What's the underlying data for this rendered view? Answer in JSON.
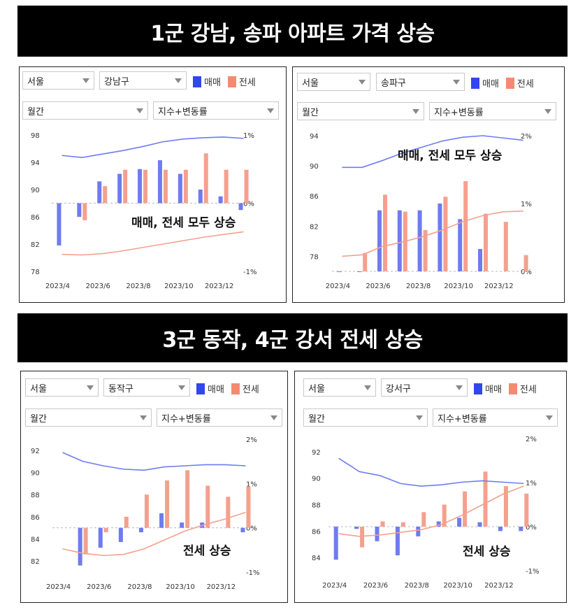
{
  "headline1": "1군 강남, 송파 아파트 가격 상승",
  "headline2": "3군 동작, 4군 강서 전세 상승",
  "colors": {
    "sale": "#6f7bf0",
    "jeonse": "#f5a08e",
    "sale_swatch": "#3246ee",
    "jeonse_swatch": "#f58a72"
  },
  "chart_data": [
    {
      "type": "bar",
      "controls": {
        "region": "서울",
        "district": "강남구",
        "period": "월간",
        "metric": "지수+변동률"
      },
      "legend": [
        "매매",
        "전세"
      ],
      "annotation": "매매, 전세 모두 상승",
      "x": [
        "2023/4",
        "2023/5",
        "2023/6",
        "2023/7",
        "2023/8",
        "2023/9",
        "2023/10",
        "2023/11",
        "2023/12",
        "2024/1"
      ],
      "x_tick_labels": [
        "2023/4",
        "2023/6",
        "2023/8",
        "2023/10",
        "2023/12"
      ],
      "left_axis": {
        "range": [
          78,
          98
        ],
        "ticks": [
          "98",
          "94",
          "90",
          "86",
          "82",
          "78"
        ]
      },
      "right_axis": {
        "range": [
          -1,
          1
        ],
        "ticks": [
          "1%",
          "0%",
          "-1%"
        ]
      },
      "series": [
        {
          "name": "매매",
          "kind": "bar",
          "axis": "right",
          "values": [
            -0.62,
            -0.2,
            0.32,
            0.43,
            0.5,
            0.63,
            0.43,
            0.2,
            0.1,
            -0.1
          ]
        },
        {
          "name": "전세",
          "kind": "bar",
          "axis": "right",
          "values": [
            null,
            -0.25,
            0.25,
            0.49,
            0.49,
            0.49,
            0.49,
            0.73,
            0.49,
            0.49
          ]
        },
        {
          "name": "매매 지수",
          "kind": "line",
          "axis": "left",
          "values": [
            95.0,
            94.7,
            95.2,
            95.7,
            96.3,
            97.0,
            97.4,
            97.6,
            97.7,
            97.5
          ]
        },
        {
          "name": "전세 지수",
          "kind": "line",
          "axis": "left",
          "values": [
            80.5,
            80.4,
            80.6,
            81.0,
            81.5,
            82.0,
            82.5,
            83.0,
            83.4,
            83.8
          ]
        }
      ]
    },
    {
      "type": "bar",
      "controls": {
        "region": "서울",
        "district": "송파구",
        "period": "월간",
        "metric": "지수+변동률"
      },
      "legend": [
        "매매",
        "전세"
      ],
      "annotation": "매매, 전세 모두 상승",
      "x": [
        "2023/4",
        "2023/5",
        "2023/6",
        "2023/7",
        "2023/8",
        "2023/9",
        "2023/10",
        "2023/11",
        "2023/12",
        "2024/1"
      ],
      "x_tick_labels": [
        "2023/4",
        "2023/6",
        "2023/8",
        "2023/10",
        "2023/12"
      ],
      "left_axis": {
        "range": [
          76,
          94
        ],
        "ticks": [
          "94",
          "90",
          "86",
          "82",
          "78"
        ]
      },
      "right_axis": {
        "range": [
          0,
          2
        ],
        "ticks": [
          "2%",
          "1%",
          "0%"
        ]
      },
      "series": [
        {
          "name": "매매",
          "kind": "bar",
          "axis": "right",
          "values": [
            0.0,
            0.0,
            0.9,
            0.9,
            0.9,
            1.0,
            0.77,
            0.33,
            null,
            null
          ]
        },
        {
          "name": "전세",
          "kind": "bar",
          "axis": "right",
          "values": [
            null,
            0.27,
            1.13,
            0.88,
            0.61,
            1.1,
            1.33,
            0.85,
            0.73,
            0.24
          ]
        },
        {
          "name": "매매 지수",
          "kind": "line",
          "axis": "left",
          "values": [
            89.8,
            89.8,
            90.7,
            91.7,
            92.5,
            93.3,
            93.8,
            94.0,
            93.7,
            93.4
          ]
        },
        {
          "name": "전세 지수",
          "kind": "line",
          "axis": "left",
          "values": [
            78.0,
            78.2,
            79.3,
            79.9,
            80.6,
            81.5,
            82.6,
            83.4,
            83.9,
            84.0
          ]
        }
      ]
    },
    {
      "type": "bar",
      "controls": {
        "region": "서울",
        "district": "동작구",
        "period": "월간",
        "metric": "지수+변동률"
      },
      "legend": [
        "매매",
        "전세"
      ],
      "annotation": "전세 상승",
      "x": [
        "2023/4",
        "2023/5",
        "2023/6",
        "2023/7",
        "2023/8",
        "2023/9",
        "2023/10",
        "2023/11",
        "2023/12",
        "2024/1"
      ],
      "x_tick_labels": [
        "2023/4",
        "2023/6",
        "2023/8",
        "2023/10",
        "2023/12"
      ],
      "left_axis": {
        "range": [
          81,
          93
        ],
        "ticks": [
          "92",
          "90",
          "88",
          "86",
          "84",
          "82"
        ]
      },
      "right_axis": {
        "range": [
          -1,
          2
        ],
        "ticks": [
          "2%",
          "1%",
          "0%",
          "-1%"
        ]
      },
      "series": [
        {
          "name": "매매",
          "kind": "bar",
          "axis": "right",
          "values": [
            null,
            -0.85,
            -0.45,
            -0.32,
            -0.1,
            0.33,
            0.12,
            0.12,
            null,
            -0.1
          ]
        },
        {
          "name": "전세",
          "kind": "bar",
          "axis": "right",
          "values": [
            null,
            -0.6,
            -0.1,
            0.25,
            0.75,
            1.07,
            1.3,
            0.95,
            0.7,
            0.93
          ]
        },
        {
          "name": "매매 지수",
          "kind": "line",
          "axis": "left",
          "values": [
            91.8,
            91.0,
            90.6,
            90.3,
            90.2,
            90.5,
            90.6,
            90.7,
            90.7,
            90.6
          ]
        },
        {
          "name": "전세 지수",
          "kind": "line",
          "axis": "left",
          "values": [
            83.1,
            82.7,
            82.5,
            82.6,
            83.1,
            83.9,
            84.7,
            85.3,
            85.8,
            86.4
          ]
        }
      ]
    },
    {
      "type": "bar",
      "controls": {
        "region": "서울",
        "district": "강서구",
        "period": "월간",
        "metric": "지수+변동률"
      },
      "legend": [
        "매매",
        "전세"
      ],
      "annotation": "전세 상승",
      "x": [
        "2023/4",
        "2023/5",
        "2023/6",
        "2023/7",
        "2023/8",
        "2023/9",
        "2023/10",
        "2023/11",
        "2023/12",
        "2024/1"
      ],
      "x_tick_labels": [
        "2023/4",
        "2023/6",
        "2023/8",
        "2023/10",
        "2023/12"
      ],
      "left_axis": {
        "range": [
          83,
          93
        ],
        "ticks": [
          "92",
          "90",
          "88",
          "86",
          "84"
        ]
      },
      "right_axis": {
        "range": [
          -1,
          2
        ],
        "ticks": [
          "2%",
          "1%",
          "0%",
          "-1%"
        ]
      },
      "series": [
        {
          "name": "매매",
          "kind": "bar",
          "axis": "right",
          "values": [
            -0.75,
            -0.05,
            -0.33,
            -0.65,
            -0.22,
            0.12,
            0.2,
            0.1,
            -0.1,
            -0.1
          ]
        },
        {
          "name": "전세",
          "kind": "bar",
          "axis": "right",
          "values": [
            null,
            -0.47,
            0.12,
            0.1,
            0.33,
            0.5,
            0.8,
            1.25,
            0.92,
            0.75
          ]
        },
        {
          "name": "매매 지수",
          "kind": "line",
          "axis": "left",
          "values": [
            91.5,
            90.5,
            90.2,
            89.6,
            89.4,
            89.5,
            89.7,
            89.8,
            89.7,
            89.6
          ]
        },
        {
          "name": "전세 지수",
          "kind": "line",
          "axis": "left",
          "values": [
            85.8,
            85.6,
            85.7,
            85.9,
            86.1,
            86.5,
            87.2,
            88.0,
            88.8,
            89.4
          ]
        }
      ]
    }
  ]
}
